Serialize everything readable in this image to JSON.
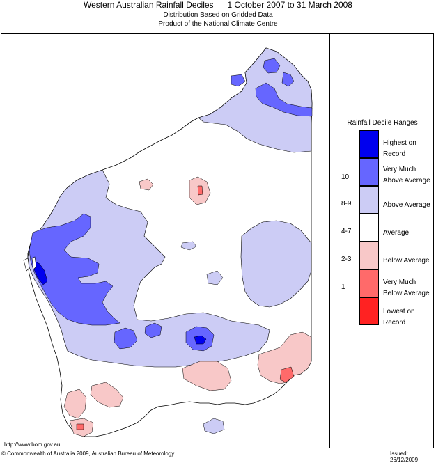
{
  "header": {
    "title": "Western Australian Rainfall Deciles      1 October 2007 to 31 March 2008",
    "line2": "Distribution Based on Gridded Data",
    "line3": "Product of the National Climate Centre"
  },
  "legend": {
    "title": "Rainfall Decile Ranges",
    "items": [
      {
        "label": "Highest on Record",
        "range": "",
        "color": "#0000ee"
      },
      {
        "label": "Very Much Above Average",
        "range": "10",
        "color": "#6666ff"
      },
      {
        "label": "Above Average",
        "range": "8-9",
        "color": "#ccccf5"
      },
      {
        "label": "Average",
        "range": "4-7",
        "color": "#ffffff"
      },
      {
        "label": "Below Average",
        "range": "2-3",
        "color": "#f8c8c8"
      },
      {
        "label": "Very Much Below Average",
        "range": "1",
        "color": "#ff6a6a"
      },
      {
        "label": "Lowest on Record",
        "range": "",
        "color": "#ff2222"
      }
    ]
  },
  "footer": {
    "url": "http://www.bom.gov.au",
    "copyright": "© Commonwealth of Australia 2009, Australian Bureau of Meteorology",
    "issued": "Issued: 26/12/2009"
  }
}
